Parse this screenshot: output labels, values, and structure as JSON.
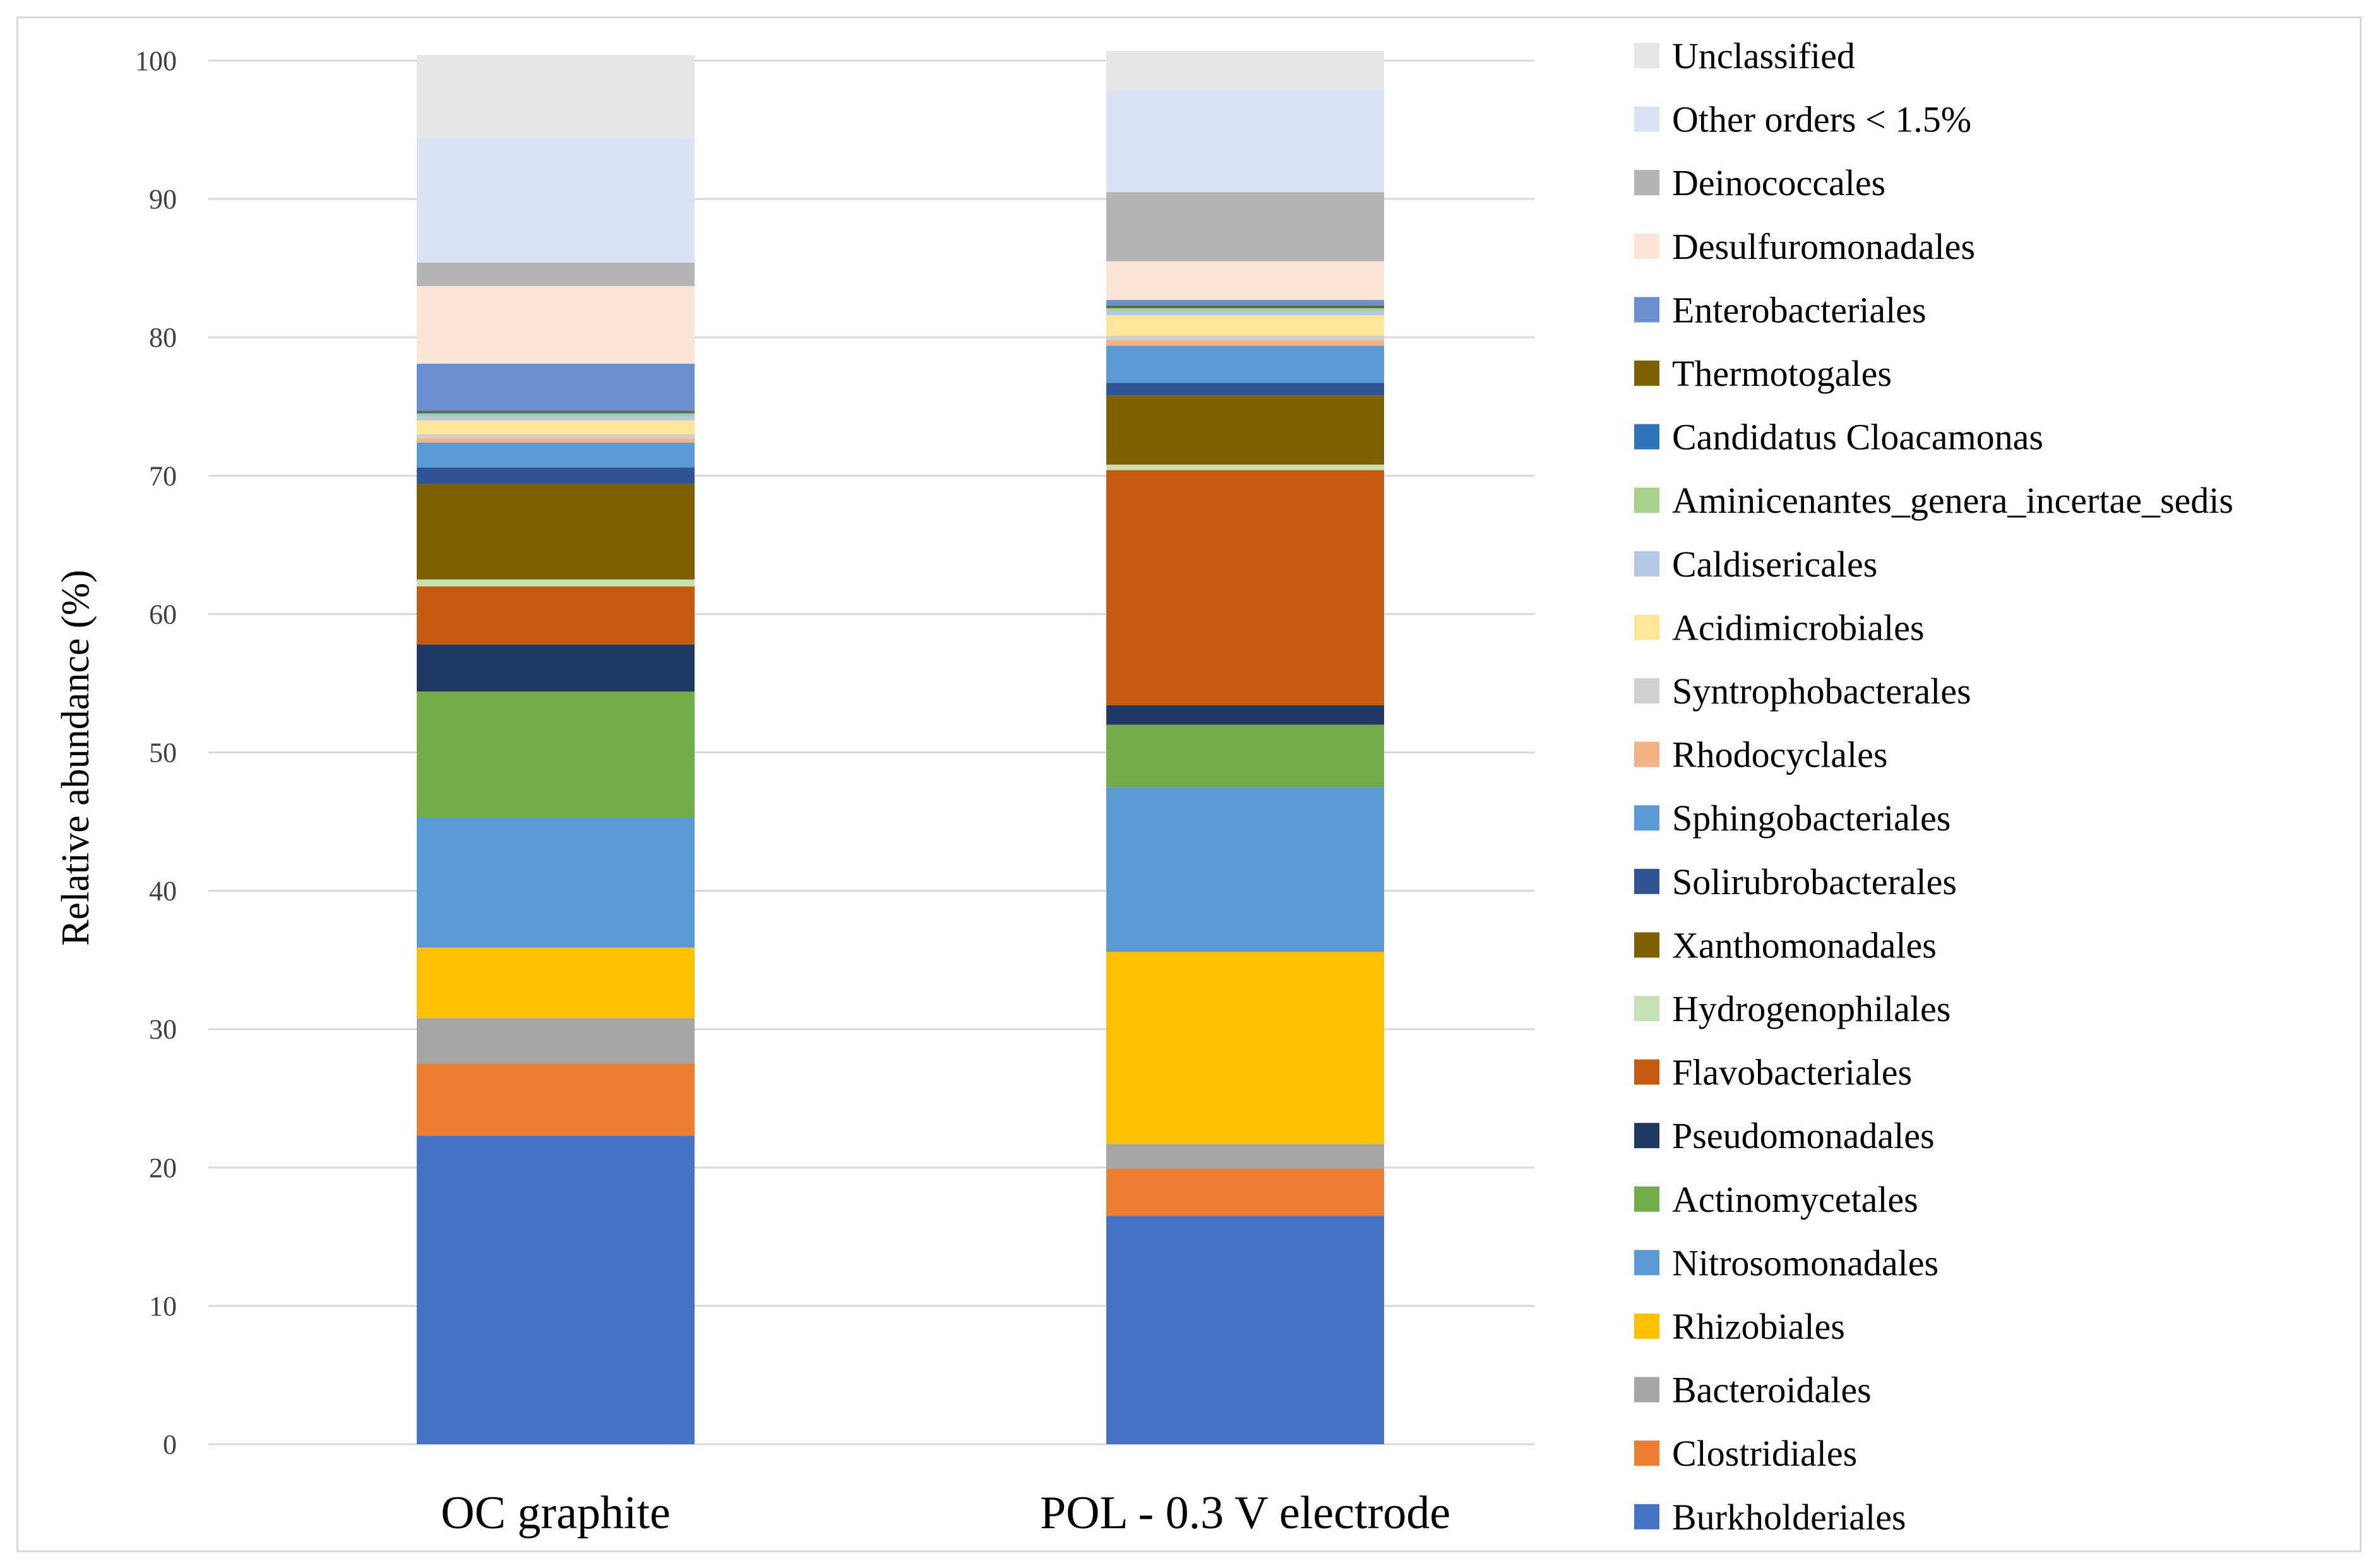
{
  "chart_data": {
    "type": "bar",
    "stacked": true,
    "categories": [
      "OC graphite",
      "POL - 0.3 V electrode"
    ],
    "ylabel": "Relative abundance (%)",
    "xlabel": "",
    "title": "",
    "ylim": [
      0,
      100
    ],
    "yticks": [
      0,
      10,
      20,
      30,
      40,
      50,
      60,
      70,
      80,
      90,
      100
    ],
    "grid": true,
    "legend_position": "right",
    "series": [
      {
        "name": "Burkholderiales",
        "color": "#4472c4",
        "values": [
          22.3,
          16.5
        ]
      },
      {
        "name": "Clostridiales",
        "color": "#ed7d31",
        "values": [
          5.2,
          3.4
        ]
      },
      {
        "name": "Bacteroidales",
        "color": "#a5a5a5",
        "values": [
          3.3,
          1.8
        ]
      },
      {
        "name": "Rhizobiales",
        "color": "#ffc000",
        "values": [
          5.1,
          13.9
        ]
      },
      {
        "name": "Nitrosomonadales",
        "color": "#5b9bd5",
        "values": [
          9.4,
          11.9
        ]
      },
      {
        "name": "Actinomycetales",
        "color": "#70ad47",
        "values": [
          9.1,
          4.5
        ]
      },
      {
        "name": "Pseudomonadales",
        "color": "#203864",
        "values": [
          3.4,
          1.4
        ]
      },
      {
        "name": "Flavobacteriales",
        "color": "#c55a11",
        "values": [
          4.2,
          17.0
        ]
      },
      {
        "name": "Hydrogenophilales",
        "color": "#c5e0b4",
        "values": [
          0.5,
          0.4
        ]
      },
      {
        "name": "Xanthomonadales",
        "color": "#7f6000",
        "values": [
          6.9,
          5.0
        ]
      },
      {
        "name": "Solirubrobacterales",
        "color": "#2f5597",
        "values": [
          1.2,
          0.9
        ]
      },
      {
        "name": "Sphingobacteriales",
        "color": "#5b9bd5",
        "values": [
          1.8,
          2.7
        ]
      },
      {
        "name": "Rhodocyclales",
        "color": "#f4b183",
        "values": [
          0.3,
          0.4
        ]
      },
      {
        "name": "Syntrophobacterales",
        "color": "#d0d0d0",
        "values": [
          0.3,
          0.3
        ]
      },
      {
        "name": "Acidimicrobiales",
        "color": "#ffe699",
        "values": [
          1.0,
          1.5
        ]
      },
      {
        "name": "Caldisericales",
        "color": "#b4c7e7",
        "values": [
          0.3,
          0.3
        ]
      },
      {
        "name": "Aminicenantes_genera_incertae_sedis",
        "color": "#a9d18e",
        "values": [
          0.2,
          0.2
        ]
      },
      {
        "name": "Candidatus Cloacamonas",
        "color": "#2e75b6",
        "values": [
          0.1,
          0.1
        ]
      },
      {
        "name": "Thermotogales",
        "color": "#7f6000",
        "values": [
          0.1,
          0.1
        ]
      },
      {
        "name": "Enterobacteriales",
        "color": "#6a8fd0",
        "values": [
          3.4,
          0.4
        ]
      },
      {
        "name": "Desulfuromonadales",
        "color": "#fbe5d6",
        "values": [
          5.6,
          2.8
        ]
      },
      {
        "name": "Deinococcales",
        "color": "#b4b4b4",
        "values": [
          1.7,
          5.0
        ]
      },
      {
        "name": "Other orders < 1.5%",
        "color": "#dae3f3",
        "values": [
          9.0,
          7.4
        ]
      },
      {
        "name": "Unclassified",
        "color": "#e6e6e6",
        "values": [
          6.0,
          2.8
        ]
      }
    ],
    "legend_order": [
      "Unclassified",
      "Other orders < 1.5%",
      "Deinococcales",
      "Desulfuromonadales",
      "Enterobacteriales",
      "Thermotogales",
      "Candidatus Cloacamonas",
      "Aminicenantes_genera_incertae_sedis",
      "Caldisericales",
      "Acidimicrobiales",
      "Syntrophobacterales",
      "Rhodocyclales",
      "Sphingobacteriales",
      "Solirubrobacterales",
      "Xanthomonadales",
      "Hydrogenophilales",
      "Flavobacteriales",
      "Pseudomonadales",
      "Actinomycetales",
      "Nitrosomonadales",
      "Rhizobiales",
      "Bacteroidales",
      "Clostridiales",
      "Burkholderiales"
    ]
  }
}
